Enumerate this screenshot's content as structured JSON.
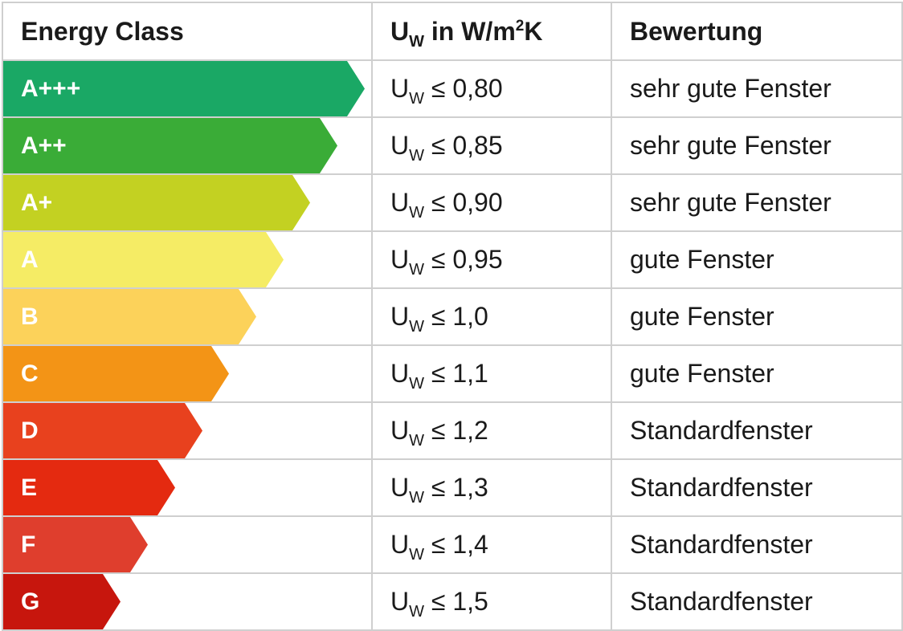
{
  "header": {
    "col_class": "Energy Class",
    "col_uw_base": "U",
    "col_uw_sub": "W",
    "col_uw_pre": " in W/m",
    "col_uw_sup": "2",
    "col_uw_post": "K",
    "col_rating": "Bewertung"
  },
  "rows": [
    {
      "cls": "A+++",
      "sym": "U",
      "sub": "W",
      "val": " ≤ 0,80",
      "rating": "sehr gute Fenster",
      "color": "#1aa865",
      "length_fraction": 1.0
    },
    {
      "cls": "A++",
      "sym": "U",
      "sub": "W",
      "val": " ≤ 0,85",
      "rating": "sehr gute Fenster",
      "color": "#3aac37",
      "length_fraction": 0.921
    },
    {
      "cls": "A+",
      "sym": "U",
      "sub": "W",
      "val": " ≤ 0,90",
      "rating": "sehr gute Fenster",
      "color": "#c3d122",
      "length_fraction": 0.842
    },
    {
      "cls": "A",
      "sym": "U",
      "sub": "W",
      "val": " ≤ 0,95",
      "rating": "gute Fenster",
      "color": "#f5ec65",
      "length_fraction": 0.763
    },
    {
      "cls": "B",
      "sym": "U",
      "sub": "W",
      "val": " ≤ 1,0",
      "rating": "gute Fenster",
      "color": "#fcd25a",
      "length_fraction": 0.684
    },
    {
      "cls": "C",
      "sym": "U",
      "sub": "W",
      "val": " ≤ 1,1",
      "rating": "gute Fenster",
      "color": "#f39416",
      "length_fraction": 0.606
    },
    {
      "cls": "D",
      "sym": "U",
      "sub": "W",
      "val": " ≤ 1,2",
      "rating": "Standardfenster",
      "color": "#e8411e",
      "length_fraction": 0.527
    },
    {
      "cls": "E",
      "sym": "U",
      "sub": "W",
      "val": " ≤ 1,3",
      "rating": "Standardfenster",
      "color": "#e42a10",
      "length_fraction": 0.448
    },
    {
      "cls": "F",
      "sym": "U",
      "sub": "W",
      "val": " ≤ 1,4",
      "rating": "Standardfenster",
      "color": "#df3e2d",
      "length_fraction": 0.369
    },
    {
      "cls": "G",
      "sym": "U",
      "sub": "W",
      "val": " ≤ 1,5",
      "rating": "Standardfenster",
      "color": "#c7160d",
      "length_fraction": 0.29
    }
  ]
}
